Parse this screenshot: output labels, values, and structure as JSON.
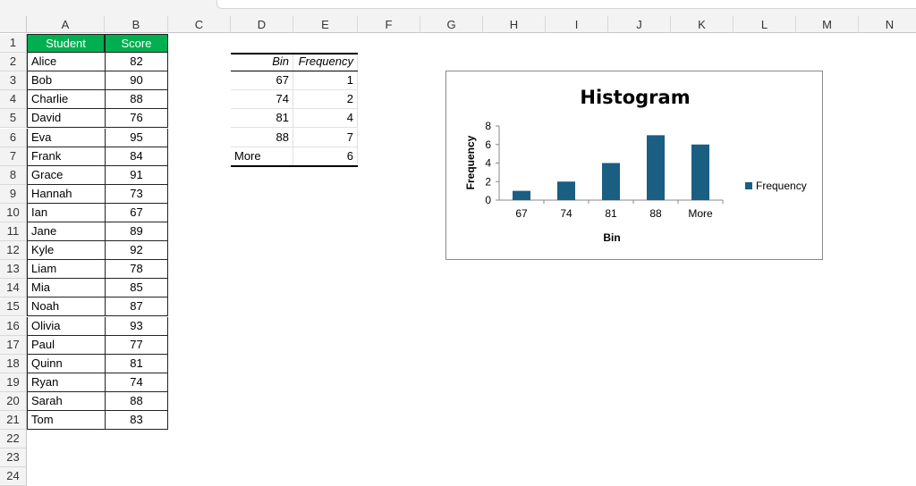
{
  "columns": [
    "A",
    "B",
    "C",
    "D",
    "E",
    "F",
    "G",
    "H",
    "I",
    "J",
    "K",
    "L",
    "M",
    "N"
  ],
  "rows": 24,
  "students": {
    "header": [
      "Student",
      "Score"
    ],
    "rows": [
      [
        "Alice",
        82
      ],
      [
        "Bob",
        90
      ],
      [
        "Charlie",
        88
      ],
      [
        "David",
        76
      ],
      [
        "Eva",
        95
      ],
      [
        "Frank",
        84
      ],
      [
        "Grace",
        91
      ],
      [
        "Hannah",
        73
      ],
      [
        "Ian",
        67
      ],
      [
        "Jane",
        89
      ],
      [
        "Kyle",
        92
      ],
      [
        "Liam",
        78
      ],
      [
        "Mia",
        85
      ],
      [
        "Noah",
        87
      ],
      [
        "Olivia",
        93
      ],
      [
        "Paul",
        77
      ],
      [
        "Quinn",
        81
      ],
      [
        "Ryan",
        74
      ],
      [
        "Sarah",
        88
      ],
      [
        "Tom",
        83
      ]
    ]
  },
  "freq_table": {
    "header": [
      "Bin",
      "Frequency"
    ],
    "rows": [
      [
        "67",
        1
      ],
      [
        "74",
        2
      ],
      [
        "81",
        4
      ],
      [
        "88",
        7
      ],
      [
        "More",
        6
      ]
    ]
  },
  "chart_data": {
    "type": "bar",
    "title": "Histogram",
    "xlabel": "Bin",
    "ylabel": "Frequency",
    "categories": [
      "67",
      "74",
      "81",
      "88",
      "More"
    ],
    "series": [
      {
        "name": "Frequency",
        "values": [
          1,
          2,
          4,
          7,
          6
        ]
      }
    ],
    "ylim": [
      0,
      8
    ],
    "yticks": [
      0,
      2,
      4,
      6,
      8
    ],
    "grid": false,
    "legend": "right",
    "color": "#1a5e82"
  },
  "colors": {
    "header_fill": "#00b050"
  }
}
